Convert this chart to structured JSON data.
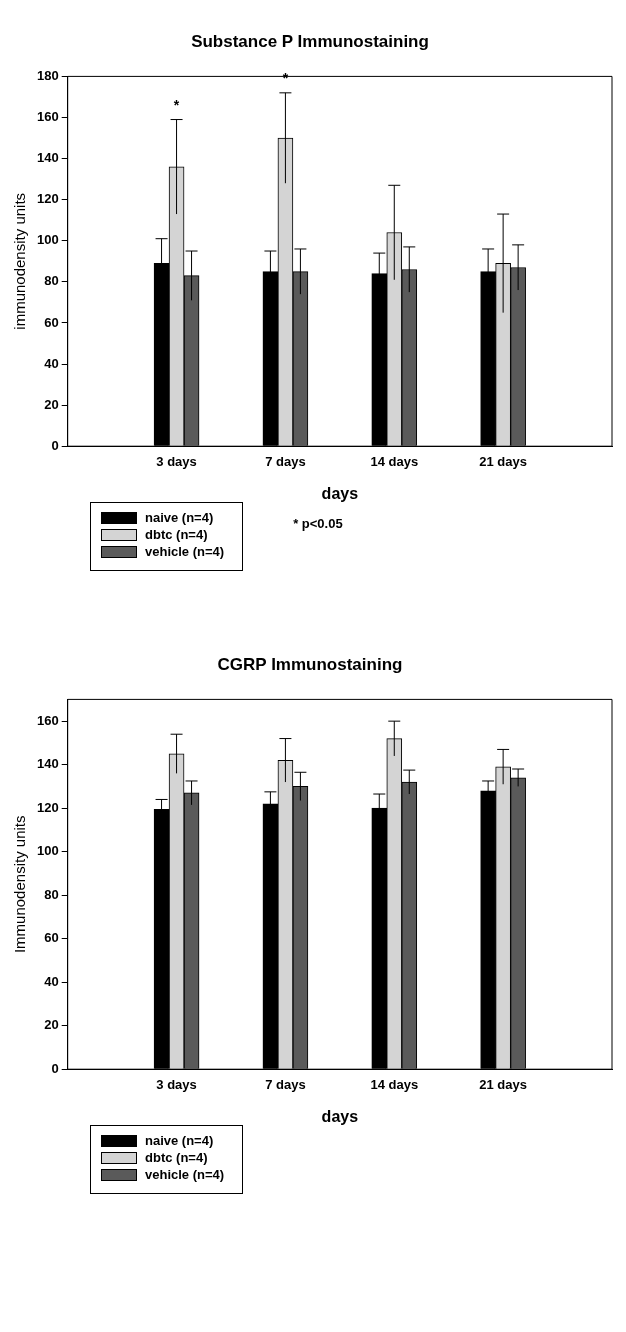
{
  "chart_data": [
    {
      "type": "bar",
      "title": "Substance P Immunostaining",
      "xlabel": "days",
      "ylabel": "immunodensity units",
      "categories": [
        "3 days",
        "7 days",
        "14 days",
        "21 days"
      ],
      "series": [
        {
          "name": "naive (n=4)",
          "color": "#000000",
          "values": [
            89,
            85,
            84,
            85
          ],
          "errors": [
            12,
            10,
            10,
            11
          ]
        },
        {
          "name": "dbtc (n=4)",
          "color": "#d4d4d4",
          "values": [
            136,
            150,
            104,
            89
          ],
          "errors": [
            23,
            22,
            23,
            24
          ]
        },
        {
          "name": "vehicle (n=4)",
          "color": "#5a5a5a",
          "values": [
            83,
            85,
            86,
            87
          ],
          "errors": [
            12,
            11,
            11,
            11
          ]
        }
      ],
      "ylim": [
        0,
        180
      ],
      "yticks": [
        0,
        20,
        40,
        60,
        80,
        100,
        120,
        140,
        160,
        180
      ],
      "grid": false,
      "legend": "bottom left",
      "annotations": [
        {
          "text": "*",
          "x": "3 days",
          "y": 159
        },
        {
          "text": "*",
          "x": "7 days",
          "y": 172
        },
        "* p<0.05"
      ]
    },
    {
      "type": "bar",
      "title": "CGRP Immunostaining",
      "xlabel": "days",
      "ylabel": "Immunodensity units",
      "categories": [
        "3 days",
        "7 days",
        "14 days",
        "21 days"
      ],
      "series": [
        {
          "name": "naive (n=4)",
          "color": "#000000",
          "values": [
            119.5,
            122,
            120,
            128
          ],
          "errors": [
            4.5,
            5.5,
            6.5,
            4.5
          ]
        },
        {
          "name": "dbtc (n=4)",
          "color": "#d4d4d4",
          "values": [
            145,
            142,
            152,
            139
          ],
          "errors": [
            9,
            10,
            8,
            8
          ]
        },
        {
          "name": "vehicle (n=4)",
          "color": "#5a5a5a",
          "values": [
            127,
            130,
            132,
            134
          ],
          "errors": [
            5.5,
            6.5,
            5.5,
            4
          ]
        }
      ],
      "ylim": [
        0,
        170
      ],
      "yticks": [
        0,
        20,
        40,
        60,
        80,
        100,
        120,
        140,
        160
      ],
      "grid": false,
      "legend": "bottom left"
    }
  ]
}
